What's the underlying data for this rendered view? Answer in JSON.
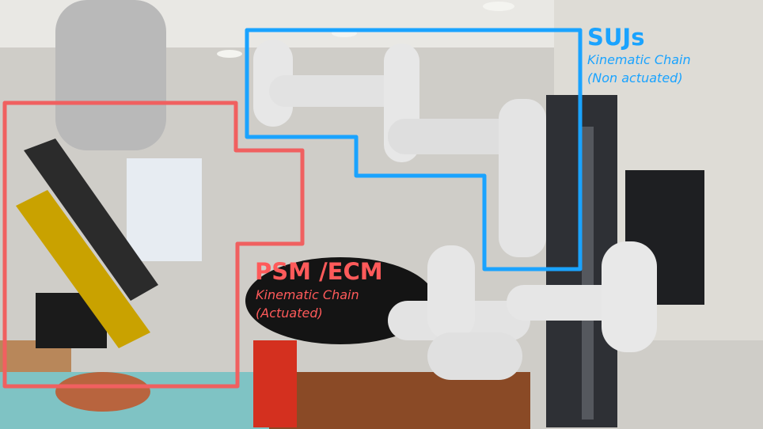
{
  "labels": {
    "suj": {
      "title": "SUJs",
      "line1": "Kinematic Chain",
      "line2": "(Non actuated)",
      "color": "#1aa3ff"
    },
    "psm": {
      "title": "PSM /ECM",
      "line1": "Kinematic Chain",
      "line2": "(Actuated)",
      "color": "#ff5a5a"
    }
  }
}
